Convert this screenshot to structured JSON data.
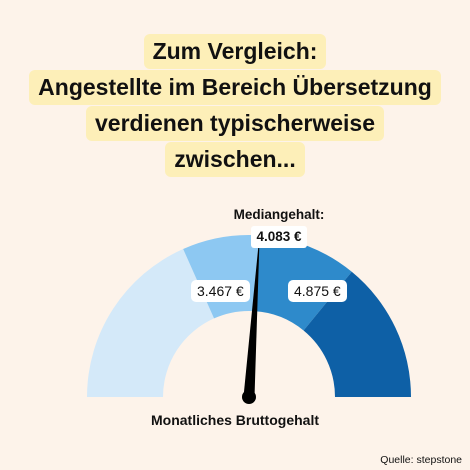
{
  "title": {
    "lines": [
      "Zum Vergleich:",
      "Angestellte im Bereich Übersetzung",
      "verdienen typischerweise",
      "zwischen..."
    ]
  },
  "chart_data": {
    "type": "gauge",
    "xlabel": "Monatliches Bruttogehalt",
    "median_label": "Mediangehalt:",
    "median_value": "4.083 €",
    "median": 4083,
    "lower_label": "3.467 €",
    "lower": 3467,
    "upper_label": "4.875 €",
    "upper": 4875,
    "scale": [
      2000,
      6000
    ],
    "colors": {
      "outer_low": "#D4E9F9",
      "inner_low": "#8DC8F2",
      "inner_high": "#2E8ACB",
      "outer_high": "#0E60A6",
      "needle": "#000000"
    }
  },
  "source": "Quelle: stepstone"
}
